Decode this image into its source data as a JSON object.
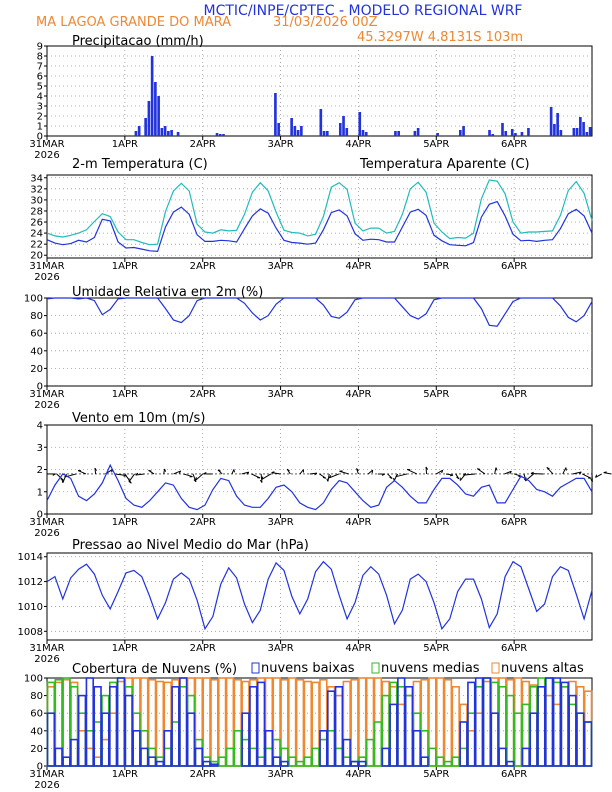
{
  "header": {
    "title": "MCTIC/INPE/CPTEC - MODELO REGIONAL WRF",
    "location": "MA LAGOA GRANDE DO MARA",
    "run": "31/03/2026 00Z",
    "coords": "45.3297W 4.8131S 103m"
  },
  "colors": {
    "title": "#2233dd",
    "orange": "#ee8833",
    "blue": "#2233dd",
    "cyan": "#22bbbb",
    "green": "#33bb22",
    "black": "#000000"
  },
  "chart_data": [
    {
      "id": "precip",
      "type": "bar",
      "title": "Precipitacao (mm/h)",
      "xlabel": "",
      "ylabel": "",
      "ylim": [
        0,
        9
      ],
      "yticks": [
        0,
        1,
        2,
        3,
        4,
        5,
        6,
        7,
        8,
        9
      ],
      "grid": true,
      "x_date_labels": [
        "31MAR",
        "1APR",
        "2APR",
        "3APR",
        "4APR",
        "5APR",
        "6APR"
      ],
      "x_year_label": "2026",
      "hours_total": 168,
      "bar_hours": [
        27,
        28,
        30,
        31,
        32,
        33,
        34,
        35,
        36,
        37,
        38,
        40,
        52,
        53,
        54,
        70,
        71,
        75,
        76,
        77,
        78,
        84,
        85,
        86,
        90,
        91,
        92,
        96,
        97,
        98,
        107,
        108,
        113,
        114,
        120,
        127,
        128,
        136,
        137,
        140,
        141,
        143,
        144,
        146,
        148,
        155,
        156,
        157,
        158,
        162,
        163,
        164,
        165,
        166,
        167
      ],
      "bar_values": [
        0.5,
        1,
        1.8,
        3.5,
        8,
        5.4,
        4,
        0.8,
        1,
        0.5,
        0.6,
        0.4,
        0.3,
        0.2,
        0.2,
        4.3,
        1.3,
        1.8,
        1,
        0.6,
        1,
        2.7,
        0.5,
        0.5,
        1.3,
        2,
        0.8,
        2.4,
        0.6,
        0.4,
        0.5,
        0.5,
        0.5,
        0.8,
        0.3,
        0.6,
        1,
        0.6,
        0.2,
        1.3,
        0.5,
        0.7,
        0.3,
        0.4,
        0.8,
        2.9,
        1.2,
        2.3,
        0.6,
        0.8,
        0.8,
        1.9,
        1.4,
        0.4,
        0.9
      ]
    },
    {
      "id": "temperature",
      "type": "line",
      "title": "2-m Temperatura (C)",
      "ylim": [
        19.5,
        34.5
      ],
      "yticks": [
        20,
        22,
        24,
        26,
        28,
        30,
        32,
        34
      ],
      "grid": true,
      "x_date_labels": [
        "31MAR",
        "1APR",
        "2APR",
        "3APR",
        "4APR",
        "5APR",
        "6APR"
      ],
      "x_year_label": "2026",
      "step_hours": 3,
      "series": [
        {
          "name": "2-m Temperatura (C)",
          "color": "#2233dd",
          "values": [
            22.8,
            22.2,
            21.9,
            22.1,
            22.7,
            22.4,
            23.2,
            26.5,
            26.2,
            22.4,
            21.3,
            21.4,
            21.1,
            20.8,
            20.7,
            25.1,
            27.8,
            28.7,
            27.4,
            23.7,
            22.5,
            22.5,
            22.7,
            22.6,
            22.4,
            24.8,
            27.1,
            28.4,
            27.6,
            24.9,
            22.7,
            22.3,
            22.2,
            22.0,
            22.2,
            24.6,
            27.7,
            28.2,
            27.1,
            23.9,
            22.7,
            22.9,
            22.8,
            22.4,
            22.4,
            25.1,
            27.8,
            28.3,
            27.2,
            23.6,
            22.6,
            21.9,
            21.8,
            21.7,
            22.3,
            26.9,
            29.2,
            29.7,
            27.1,
            23.8,
            22.6,
            22.7,
            22.5,
            22.7,
            22.8,
            24.8,
            27.5,
            28.3,
            27.1,
            24.0
          ]
        },
        {
          "name": "Temperatura Aparente (C)",
          "color": "#22bbbb",
          "values": [
            24.0,
            23.5,
            23.3,
            23.6,
            24.0,
            24.6,
            26.1,
            27.5,
            27.0,
            24.2,
            22.8,
            22.8,
            22.3,
            21.9,
            22.0,
            27.9,
            31.6,
            33.0,
            31.6,
            25.6,
            24.2,
            24.0,
            24.6,
            24.4,
            24.5,
            27.4,
            31.4,
            33.1,
            31.6,
            27.8,
            24.5,
            24.1,
            24.0,
            23.5,
            23.8,
            27.0,
            32.3,
            33.1,
            31.9,
            25.8,
            24.4,
            24.9,
            24.9,
            24.0,
            24.3,
            27.4,
            32.0,
            33.2,
            31.4,
            25.8,
            24.2,
            23.0,
            23.2,
            23.1,
            24.0,
            30.2,
            33.6,
            33.4,
            31.1,
            26.0,
            24.0,
            24.2,
            24.2,
            24.3,
            24.4,
            27.2,
            31.7,
            33.3,
            31.2,
            26.3
          ]
        }
      ]
    },
    {
      "id": "humidity",
      "type": "line",
      "title": "Umidade Relativa em 2m (%)",
      "ylim": [
        0,
        100
      ],
      "yticks": [
        0,
        20,
        40,
        60,
        80,
        100
      ],
      "grid": true,
      "x_date_labels": [
        "31MAR",
        "1APR",
        "2APR",
        "3APR",
        "4APR",
        "5APR",
        "6APR"
      ],
      "x_year_label": "2026",
      "step_hours": 3,
      "series": [
        {
          "name": "Umidade Relativa em 2m (%)",
          "color": "#2233dd",
          "values": [
            99,
            100,
            100,
            100,
            99,
            100,
            97,
            81,
            87,
            99,
            100,
            100,
            100,
            100,
            100,
            88,
            75,
            72,
            80,
            97,
            100,
            100,
            100,
            100,
            100,
            94,
            83,
            75,
            80,
            93,
            100,
            100,
            100,
            100,
            100,
            92,
            79,
            77,
            84,
            98,
            100,
            100,
            100,
            100,
            100,
            90,
            80,
            76,
            82,
            98,
            100,
            100,
            100,
            100,
            100,
            88,
            69,
            68,
            82,
            96,
            100,
            100,
            100,
            100,
            100,
            91,
            78,
            73,
            80,
            96
          ]
        }
      ]
    },
    {
      "id": "wind",
      "type": "line",
      "title": "Vento em 10m (m/s)",
      "ylim": [
        0,
        4
      ],
      "yticks": [
        0,
        1,
        2,
        3,
        4
      ],
      "grid": true,
      "x_date_labels": [
        "31MAR",
        "1APR",
        "2APR",
        "3APR",
        "4APR",
        "5APR",
        "6APR"
      ],
      "x_year_label": "2026",
      "step_hours": 3,
      "barb_level": 1.8,
      "series": [
        {
          "name": "Vento em 10m (m/s)",
          "color": "#2233dd",
          "values": [
            0.6,
            1.3,
            1.8,
            1.6,
            0.8,
            0.6,
            0.9,
            1.4,
            2.2,
            1.5,
            0.7,
            0.4,
            0.3,
            0.6,
            1.0,
            1.4,
            1.3,
            0.7,
            0.3,
            0.2,
            0.4,
            1.1,
            1.6,
            1.5,
            0.8,
            0.4,
            0.3,
            0.3,
            0.7,
            1.2,
            1.3,
            1.0,
            0.5,
            0.3,
            0.2,
            0.5,
            1.1,
            1.5,
            1.4,
            1.0,
            0.6,
            0.3,
            0.4,
            1.2,
            1.5,
            1.2,
            0.8,
            0.5,
            0.5,
            1.1,
            1.6,
            1.6,
            1.3,
            0.9,
            0.8,
            1.2,
            1.3,
            0.5,
            0.5,
            1.1,
            1.7,
            1.5,
            1.1,
            1.0,
            0.8,
            1.2,
            1.4,
            1.6,
            1.6,
            1.0
          ]
        }
      ]
    },
    {
      "id": "pressure",
      "type": "line",
      "title": "Pressao ao Nivel Medio do Mar (hPa)",
      "ylim": [
        1007.3,
        1014.3
      ],
      "yticks": [
        1008,
        1010,
        1012,
        1014
      ],
      "grid": true,
      "x_date_labels": [
        "31MAR",
        "1APR",
        "2APR",
        "3APR",
        "4APR",
        "5APR",
        "6APR"
      ],
      "x_year_label": "2026",
      "step_hours": 3,
      "series": [
        {
          "name": "Pressao ao Nivel Medio do Mar (hPa)",
          "color": "#2233dd",
          "values": [
            1012.0,
            1012.4,
            1010.6,
            1012.3,
            1013.0,
            1013.4,
            1012.6,
            1010.9,
            1009.8,
            1011.2,
            1012.7,
            1012.9,
            1012.4,
            1010.8,
            1009.0,
            1010.3,
            1012.2,
            1012.7,
            1012.2,
            1010.5,
            1008.2,
            1009.2,
            1011.8,
            1013.1,
            1012.3,
            1010.2,
            1008.7,
            1009.7,
            1012.2,
            1013.5,
            1012.9,
            1010.8,
            1009.4,
            1010.6,
            1012.8,
            1013.6,
            1013.0,
            1010.9,
            1009.0,
            1010.3,
            1012.5,
            1013.2,
            1012.6,
            1010.9,
            1008.6,
            1009.7,
            1012.2,
            1012.6,
            1012.0,
            1010.3,
            1008.2,
            1009.0,
            1011.2,
            1012.2,
            1012.2,
            1010.6,
            1008.3,
            1009.4,
            1012.4,
            1013.6,
            1013.2,
            1011.4,
            1009.6,
            1010.2,
            1012.4,
            1013.2,
            1012.9,
            1011.0,
            1009.0,
            1011.3
          ]
        }
      ]
    },
    {
      "id": "clouds",
      "type": "bar",
      "title": "Cobertura de Nuvens (%)",
      "ylim": [
        0,
        100
      ],
      "yticks": [
        0,
        20,
        40,
        60,
        80,
        100
      ],
      "grid": true,
      "x_date_labels": [
        "31MAR",
        "1APR",
        "2APR",
        "3APR",
        "4APR",
        "5APR",
        "6APR"
      ],
      "x_year_label": "2026",
      "hours_total": 168,
      "legend": [
        {
          "label": "nuvens baixas",
          "color": "#2233dd"
        },
        {
          "label": "nuvens medias",
          "color": "#33bb22"
        },
        {
          "label": "nuvens altas",
          "color": "#ee8833"
        }
      ],
      "series": [
        {
          "name": "nuvens altas",
          "color": "#ee8833",
          "values": [
            90,
            95,
            98,
            95,
            40,
            20,
            10,
            30,
            60,
            96,
            100,
            100,
            100,
            98,
            96,
            95,
            98,
            100,
            100,
            100,
            100,
            98,
            100,
            100,
            98,
            96,
            98,
            100,
            100,
            100,
            98,
            100,
            98,
            96,
            95,
            98,
            90,
            80,
            96,
            98,
            100,
            100,
            100,
            96,
            90,
            70,
            80,
            96,
            98,
            100,
            100,
            98,
            90,
            70,
            40,
            60,
            96,
            100,
            100,
            98,
            100,
            96,
            92,
            90,
            80,
            70,
            90,
            96,
            90,
            85
          ]
        },
        {
          "name": "nuvens medias",
          "color": "#33bb22",
          "values": [
            95,
            98,
            100,
            90,
            60,
            40,
            50,
            80,
            95,
            100,
            90,
            60,
            40,
            20,
            10,
            20,
            50,
            90,
            80,
            30,
            10,
            5,
            10,
            20,
            40,
            30,
            20,
            10,
            20,
            30,
            20,
            10,
            5,
            10,
            20,
            30,
            40,
            20,
            10,
            5,
            10,
            30,
            50,
            80,
            95,
            90,
            80,
            60,
            40,
            20,
            10,
            5,
            10,
            20,
            60,
            90,
            100,
            95,
            90,
            80,
            60,
            70,
            90,
            100,
            100,
            95,
            90,
            70,
            60,
            50
          ]
        },
        {
          "name": "nuvens baixas",
          "color": "#2233dd",
          "values": [
            60,
            20,
            10,
            30,
            80,
            100,
            90,
            60,
            90,
            100,
            80,
            40,
            20,
            10,
            5,
            40,
            90,
            100,
            60,
            20,
            5,
            2,
            0,
            0,
            0,
            60,
            90,
            95,
            40,
            10,
            5,
            0,
            0,
            0,
            0,
            40,
            85,
            90,
            30,
            5,
            5,
            0,
            0,
            20,
            70,
            100,
            90,
            40,
            10,
            0,
            0,
            0,
            0,
            50,
            95,
            100,
            100,
            60,
            20,
            5,
            0,
            20,
            60,
            90,
            100,
            100,
            95,
            80,
            60,
            50
          ]
        }
      ]
    }
  ]
}
